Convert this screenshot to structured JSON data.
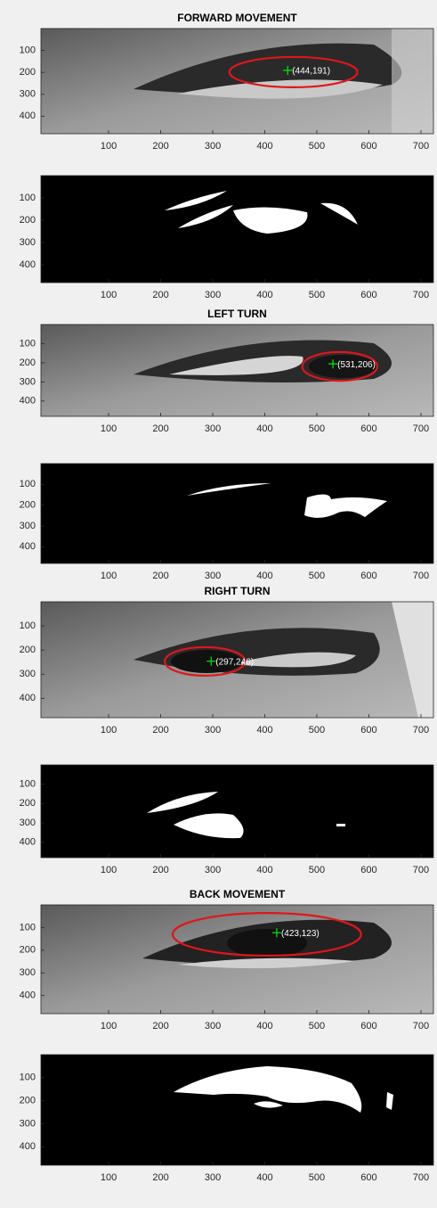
{
  "chart_data": [
    {
      "type": "image",
      "title": "FORWARD MOVEMENT",
      "xlim": [
        -30,
        724
      ],
      "ylim": [
        480,
        0
      ],
      "xticks": [
        100,
        200,
        300,
        400,
        500,
        600,
        700
      ],
      "yticks": [
        100,
        200,
        300,
        400
      ],
      "points": [
        {
          "x": 444,
          "y": 191,
          "label": "(444,191)",
          "color": "#00e000"
        }
      ],
      "ellipse": {
        "cx": 455,
        "cy": 199,
        "rx": 123,
        "ry": 69,
        "color": "#e0161b"
      }
    },
    {
      "type": "image",
      "xlim": [
        -30,
        724
      ],
      "ylim": [
        480,
        0
      ],
      "xticks": [
        100,
        200,
        300,
        400,
        500,
        600,
        700
      ],
      "yticks": [
        100,
        200,
        300,
        400
      ]
    },
    {
      "type": "image",
      "title": "LEFT TURN",
      "xlim": [
        -30,
        724
      ],
      "ylim": [
        480,
        0
      ],
      "xticks": [
        100,
        200,
        300,
        400,
        500,
        600,
        700
      ],
      "yticks": [
        100,
        200,
        300,
        400
      ],
      "points": [
        {
          "x": 531,
          "y": 206,
          "label": "(531,206)",
          "color": "#00e000"
        }
      ],
      "ellipse": {
        "cx": 544,
        "cy": 219,
        "rx": 72,
        "ry": 75,
        "color": "#e0161b"
      }
    },
    {
      "type": "image",
      "xlim": [
        -30,
        724
      ],
      "ylim": [
        480,
        0
      ],
      "xticks": [
        100,
        200,
        300,
        400,
        500,
        600,
        700
      ],
      "yticks": [
        100,
        200,
        300,
        400
      ]
    },
    {
      "type": "image",
      "title": "RIGHT TURN",
      "xlim": [
        -30,
        724
      ],
      "ylim": [
        480,
        0
      ],
      "xticks": [
        100,
        200,
        300,
        400,
        500,
        600,
        700
      ],
      "yticks": [
        100,
        200,
        300,
        400
      ],
      "points": [
        {
          "x": 297,
          "y": 246,
          "label": "(297,246)",
          "color": "#00e000"
        }
      ],
      "ellipse": {
        "cx": 285,
        "cy": 247,
        "rx": 77,
        "ry": 59,
        "color": "#e0161b"
      }
    },
    {
      "type": "image",
      "xlim": [
        -30,
        724
      ],
      "ylim": [
        480,
        0
      ],
      "xticks": [
        100,
        200,
        300,
        400,
        500,
        600,
        700
      ],
      "yticks": [
        100,
        200,
        300,
        400
      ]
    },
    {
      "type": "image",
      "title": "BACK MOVEMENT",
      "xlim": [
        -30,
        724
      ],
      "ylim": [
        480,
        0
      ],
      "xticks": [
        100,
        200,
        300,
        400,
        500,
        600,
        700
      ],
      "yticks": [
        100,
        200,
        300,
        400
      ],
      "points": [
        {
          "x": 423,
          "y": 123,
          "label": "(423,123)",
          "color": "#00e000"
        }
      ],
      "ellipse": {
        "cx": 404,
        "cy": 130,
        "rx": 181,
        "ry": 94,
        "color": "#e0161b"
      }
    },
    {
      "type": "image",
      "xlim": [
        -30,
        724
      ],
      "ylim": [
        480,
        0
      ],
      "xticks": [
        100,
        200,
        300,
        400,
        500,
        600,
        700
      ],
      "yticks": [
        100,
        200,
        300,
        400
      ]
    }
  ]
}
